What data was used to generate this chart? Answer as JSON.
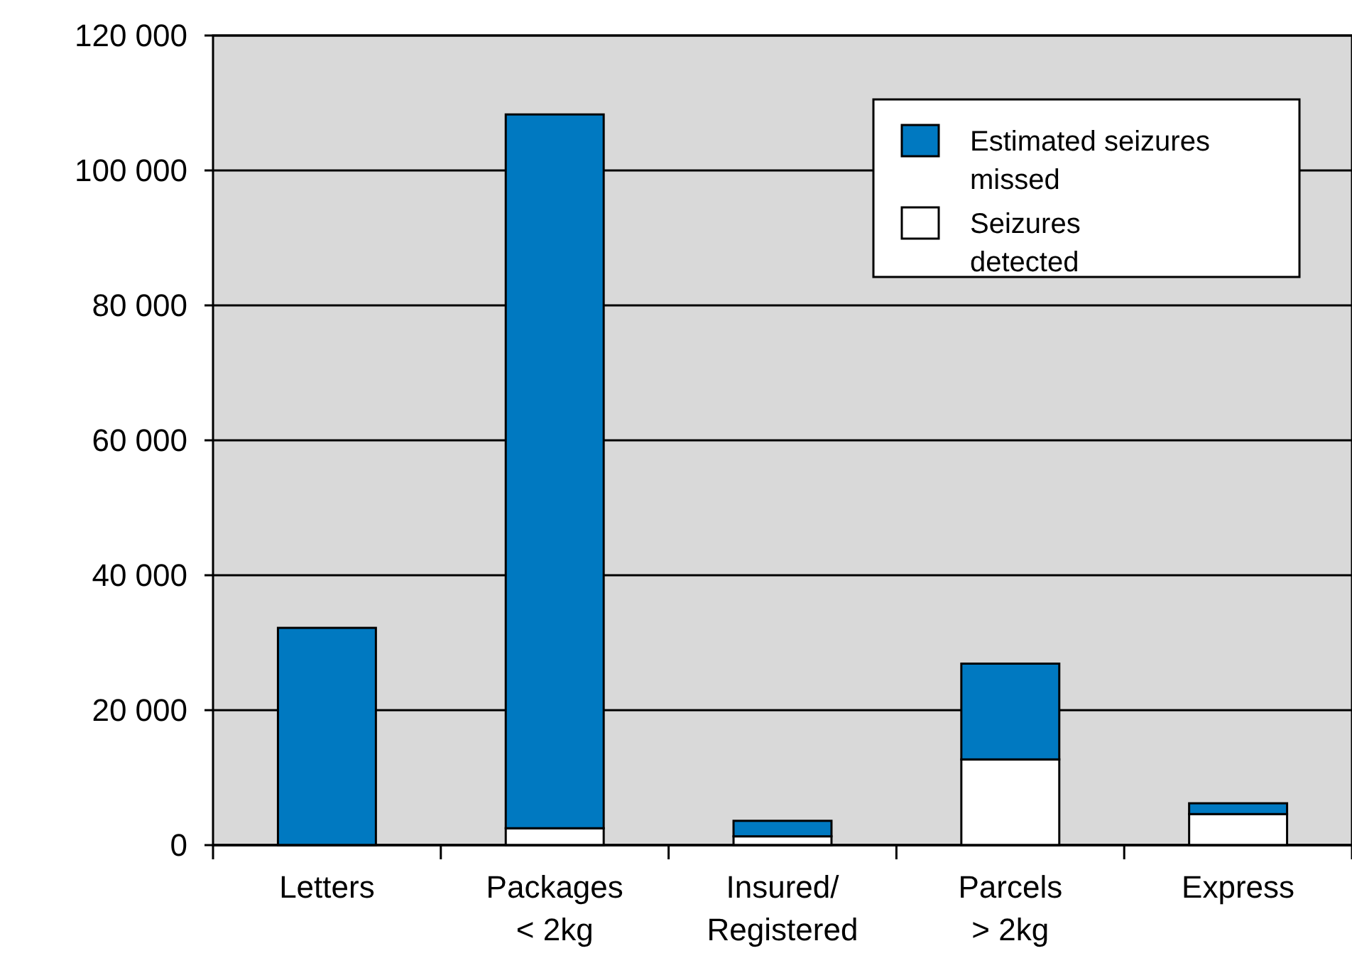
{
  "chart_data": {
    "type": "bar",
    "stacked": true,
    "categories": [
      "Letters",
      "Packages\n< 2kg",
      "Insured/\nRegistered",
      "Parcels\n> 2kg",
      "Express"
    ],
    "series": [
      {
        "name": "Seizures\ndetected",
        "color": "#ffffff",
        "values": [
          0,
          2500,
          1300,
          12700,
          4600
        ]
      },
      {
        "name": "Estimated seizures\nmissed",
        "color": "#0079c1",
        "values": [
          32200,
          105800,
          2300,
          14200,
          1600
        ]
      }
    ],
    "ylim": [
      0,
      120000
    ],
    "yticks": [
      {
        "value": 0,
        "label": "0"
      },
      {
        "value": 20000,
        "label": "20 000"
      },
      {
        "value": 40000,
        "label": "40 000"
      },
      {
        "value": 60000,
        "label": "60 000"
      },
      {
        "value": 80000,
        "label": "80 000"
      },
      {
        "value": 100000,
        "label": "100 000"
      },
      {
        "value": 120000,
        "label": "120 000"
      }
    ],
    "grid": "y",
    "legend": "top right"
  }
}
